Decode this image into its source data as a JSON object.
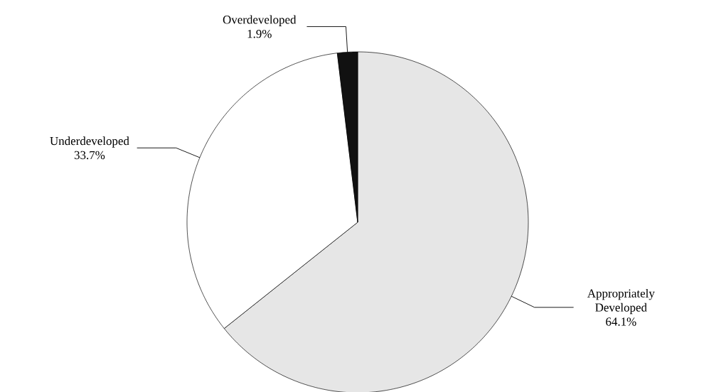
{
  "chart_data": {
    "type": "pie",
    "categories": [
      "Appropriately Developed",
      "Underdeveloped",
      "Overdeveloped"
    ],
    "values": [
      64.1,
      33.7,
      1.9
    ],
    "value_labels": [
      "64.1%",
      "33.7%",
      "1.9%"
    ],
    "colors": [
      "#e6e6e6",
      "#ffffff",
      "#111111"
    ]
  }
}
